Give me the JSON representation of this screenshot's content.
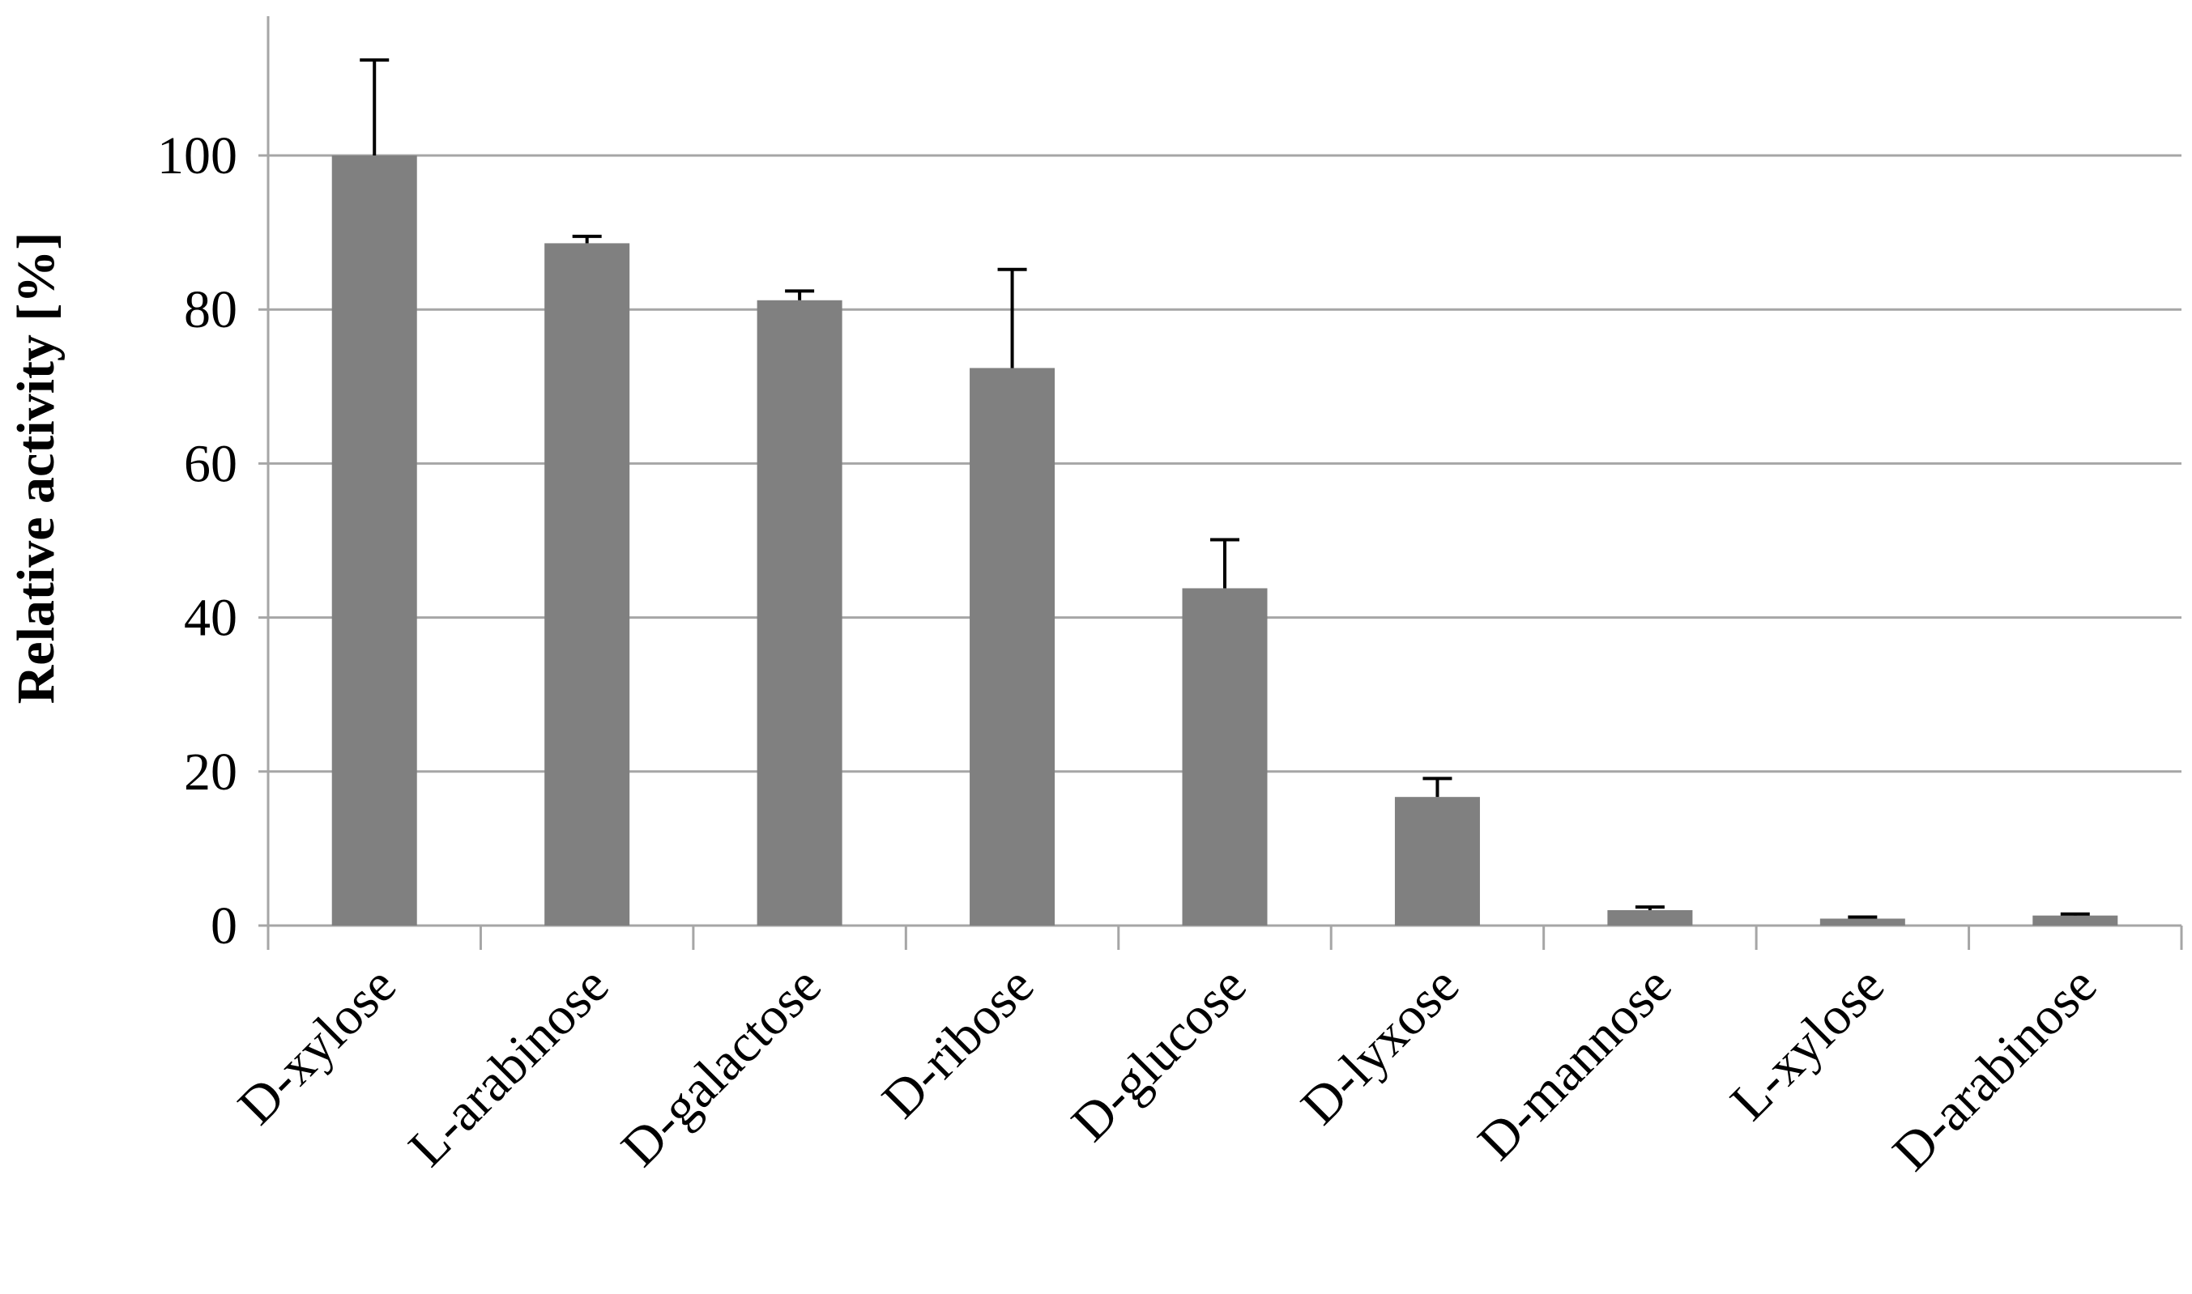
{
  "chart_data": {
    "type": "bar",
    "title": "",
    "xlabel": "",
    "ylabel": "Relative activity [%]",
    "ylim": [
      0,
      100
    ],
    "yticks": [
      0,
      20,
      40,
      60,
      80,
      100
    ],
    "grid": true,
    "categories": [
      "D-xylose",
      "L-arabinose",
      "D-galactose",
      "D-ribose",
      "D-glucose",
      "D-lyxose",
      "D-mannose",
      "L-xylose",
      "D-arabinose"
    ],
    "values": [
      100,
      88.6,
      81.2,
      72.4,
      43.8,
      16.7,
      2.0,
      0.9,
      1.3
    ],
    "error_plus": [
      12.4,
      0.9,
      1.2,
      12.8,
      6.3,
      2.4,
      0.4,
      0.2,
      0.2
    ],
    "colors": {
      "bar": "#808080",
      "grid": "#a6a6a6",
      "error": "#000000"
    }
  }
}
